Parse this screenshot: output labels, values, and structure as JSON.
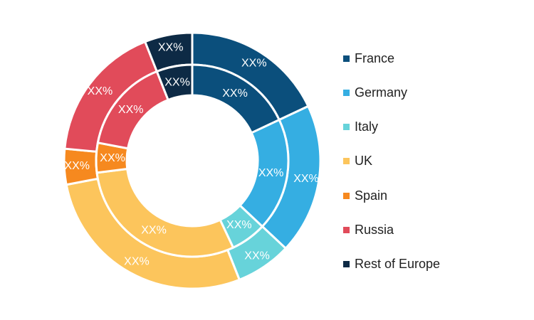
{
  "chart_data": {
    "type": "donut",
    "categories": [
      "France",
      "Germany",
      "Italy",
      "UK",
      "Spain",
      "Russia",
      "Rest of Europe"
    ],
    "colors": [
      "#0b4f7c",
      "#35aee2",
      "#67d3da",
      "#fcc55c",
      "#f6891f",
      "#e14b5a",
      "#0d2a45"
    ],
    "series": [
      {
        "ring": "outer",
        "values": [
          18,
          19,
          7,
          28,
          4.5,
          17.5,
          6
        ],
        "labels": [
          "XX%",
          "XX%",
          "XX%",
          "XX%",
          "XX%",
          "XX%",
          "XX%"
        ]
      },
      {
        "ring": "inner",
        "values": [
          18,
          19,
          6,
          30,
          5,
          16,
          6
        ],
        "labels": [
          "XX%",
          "XX%",
          "XX%",
          "XX%",
          "XX%",
          "XX%",
          "XX%"
        ]
      }
    ],
    "legend_position": "right"
  }
}
